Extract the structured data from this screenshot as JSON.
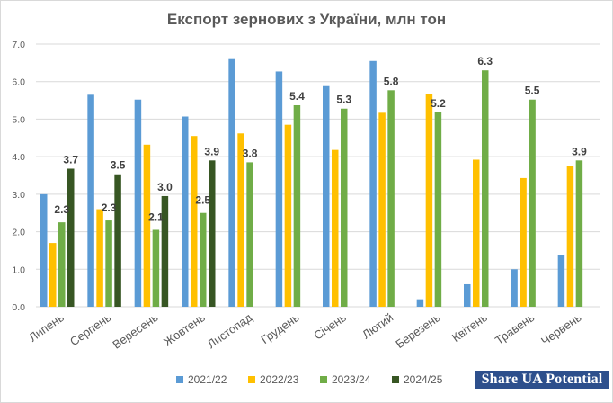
{
  "chart_data": {
    "type": "bar",
    "title": "Експорт зернових з України, млн тон",
    "xlabel": "",
    "ylabel": "",
    "ylim": [
      0,
      7
    ],
    "yticks": [
      "0.0",
      "1.0",
      "2.0",
      "3.0",
      "4.0",
      "5.0",
      "6.0",
      "7.0"
    ],
    "grid": true,
    "legend_position": "bottom",
    "categories": [
      "Липень",
      "Серпень",
      "Вересень",
      "Жовтень",
      "Листопад",
      "Грудень",
      "Січень",
      "Лютий",
      "Березень",
      "Квітень",
      "Травень",
      "Червень"
    ],
    "series": [
      {
        "name": "2021/22",
        "color": "#5b9bd5",
        "values": [
          3.0,
          5.65,
          5.52,
          5.07,
          6.6,
          6.27,
          5.88,
          6.55,
          0.2,
          0.6,
          1.0,
          1.38
        ],
        "labels": [
          null,
          null,
          null,
          null,
          null,
          null,
          null,
          null,
          null,
          null,
          null,
          null
        ]
      },
      {
        "name": "2022/23",
        "color": "#ffc000",
        "values": [
          1.7,
          2.6,
          4.32,
          4.55,
          4.62,
          4.85,
          4.18,
          5.17,
          5.67,
          3.92,
          3.43,
          3.76
        ],
        "labels": [
          null,
          null,
          null,
          null,
          null,
          null,
          null,
          null,
          null,
          null,
          null,
          null
        ]
      },
      {
        "name": "2023/24",
        "color": "#70ad47",
        "values": [
          2.25,
          2.3,
          2.05,
          2.5,
          3.85,
          5.37,
          5.28,
          5.77,
          5.18,
          6.3,
          5.52,
          3.9
        ],
        "labels": [
          "2.3",
          "2.3",
          "2.1",
          "2.5",
          "3.8",
          "5.4",
          "5.3",
          "5.8",
          "5.2",
          "6.3",
          "5.5",
          "3.9"
        ]
      },
      {
        "name": "2024/25",
        "color": "#375623",
        "values": [
          3.68,
          3.53,
          2.95,
          3.9,
          null,
          null,
          null,
          null,
          null,
          null,
          null,
          null
        ],
        "labels": [
          "3.7",
          "3.5",
          "3.0",
          "3.9",
          null,
          null,
          null,
          null,
          null,
          null,
          null,
          null
        ]
      }
    ]
  },
  "watermark": "Share UA Potential"
}
